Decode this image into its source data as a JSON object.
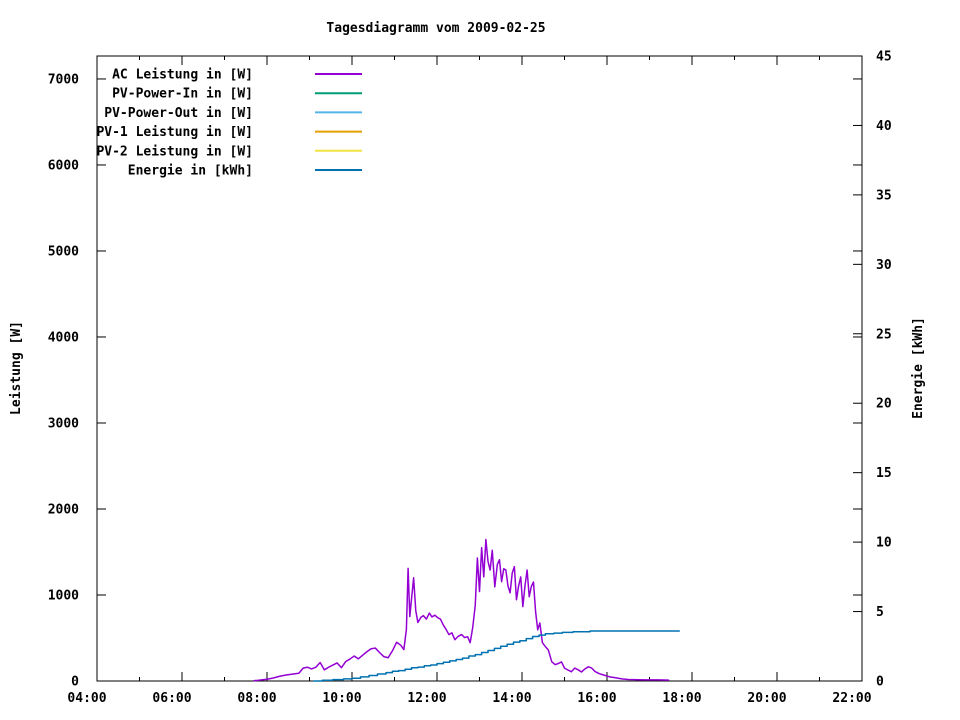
{
  "chart_data": {
    "type": "line",
    "title": "Tagesdiagramm vom 2009-02-25",
    "grid": false,
    "legend_position": "top-left-inside",
    "x_axis": {
      "kind": "time",
      "range_hours": [
        4,
        22
      ],
      "major_tick_labels": [
        "04:00",
        "06:00",
        "08:00",
        "10:00",
        "12:00",
        "14:00",
        "16:00",
        "18:00",
        "20:00",
        "22:00"
      ],
      "major_tick_hours": [
        4,
        6,
        8,
        10,
        12,
        14,
        16,
        18,
        20,
        22
      ],
      "minor_tick_step_hours": 1
    },
    "y_left": {
      "label": "Leistung [W]",
      "tick_labels": [
        "0",
        "1000",
        "2000",
        "3000",
        "4000",
        "5000",
        "6000",
        "7000"
      ],
      "tick_values": [
        0,
        1000,
        2000,
        3000,
        4000,
        5000,
        6000,
        7000
      ],
      "scale_max_at_top": 7267
    },
    "y_right": {
      "label": "Energie [kWh]",
      "tick_labels": [
        "0",
        "5",
        "10",
        "15",
        "20",
        "25",
        "30",
        "35",
        "40",
        "45"
      ],
      "tick_values": [
        0,
        5,
        10,
        15,
        20,
        25,
        30,
        35,
        40,
        45
      ],
      "range": [
        0,
        45
      ]
    },
    "series": [
      {
        "name": "AC Leistung in [W]",
        "color": "#9400d3",
        "axis": "left",
        "step": false,
        "points": [
          [
            7.7,
            5
          ],
          [
            7.78,
            8
          ],
          [
            7.9,
            15
          ],
          [
            8.0,
            20
          ],
          [
            8.15,
            35
          ],
          [
            8.3,
            55
          ],
          [
            8.45,
            70
          ],
          [
            8.6,
            80
          ],
          [
            8.75,
            90
          ],
          [
            8.85,
            150
          ],
          [
            8.95,
            160
          ],
          [
            9.05,
            140
          ],
          [
            9.15,
            160
          ],
          [
            9.25,
            215
          ],
          [
            9.35,
            130
          ],
          [
            9.45,
            160
          ],
          [
            9.55,
            185
          ],
          [
            9.65,
            210
          ],
          [
            9.75,
            155
          ],
          [
            9.85,
            225
          ],
          [
            9.95,
            255
          ],
          [
            10.05,
            290
          ],
          [
            10.15,
            258
          ],
          [
            10.25,
            300
          ],
          [
            10.35,
            340
          ],
          [
            10.45,
            375
          ],
          [
            10.55,
            383
          ],
          [
            10.65,
            330
          ],
          [
            10.75,
            283
          ],
          [
            10.85,
            270
          ],
          [
            10.95,
            350
          ],
          [
            11.05,
            450
          ],
          [
            11.15,
            415
          ],
          [
            11.22,
            365
          ],
          [
            11.28,
            600
          ],
          [
            11.32,
            1310
          ],
          [
            11.36,
            750
          ],
          [
            11.4,
            950
          ],
          [
            11.45,
            1200
          ],
          [
            11.5,
            820
          ],
          [
            11.55,
            680
          ],
          [
            11.62,
            740
          ],
          [
            11.68,
            760
          ],
          [
            11.75,
            720
          ],
          [
            11.82,
            790
          ],
          [
            11.88,
            745
          ],
          [
            11.95,
            765
          ],
          [
            12.02,
            735
          ],
          [
            12.08,
            720
          ],
          [
            12.15,
            650
          ],
          [
            12.22,
            595
          ],
          [
            12.28,
            540
          ],
          [
            12.35,
            560
          ],
          [
            12.42,
            480
          ],
          [
            12.5,
            520
          ],
          [
            12.58,
            540
          ],
          [
            12.65,
            505
          ],
          [
            12.72,
            515
          ],
          [
            12.78,
            445
          ],
          [
            12.84,
            620
          ],
          [
            12.9,
            880
          ],
          [
            12.95,
            1430
          ],
          [
            13.0,
            1040
          ],
          [
            13.05,
            1550
          ],
          [
            13.1,
            1210
          ],
          [
            13.15,
            1645
          ],
          [
            13.2,
            1390
          ],
          [
            13.25,
            1290
          ],
          [
            13.3,
            1520
          ],
          [
            13.36,
            1095
          ],
          [
            13.42,
            1355
          ],
          [
            13.47,
            1410
          ],
          [
            13.52,
            1155
          ],
          [
            13.57,
            1305
          ],
          [
            13.62,
            1290
          ],
          [
            13.67,
            1105
          ],
          [
            13.72,
            1025
          ],
          [
            13.77,
            1255
          ],
          [
            13.82,
            1330
          ],
          [
            13.87,
            945
          ],
          [
            13.92,
            1105
          ],
          [
            13.97,
            1210
          ],
          [
            14.02,
            865
          ],
          [
            14.07,
            1105
          ],
          [
            14.12,
            1290
          ],
          [
            14.17,
            980
          ],
          [
            14.22,
            1100
          ],
          [
            14.27,
            1150
          ],
          [
            14.32,
            805
          ],
          [
            14.37,
            595
          ],
          [
            14.42,
            675
          ],
          [
            14.48,
            445
          ],
          [
            14.55,
            400
          ],
          [
            14.62,
            360
          ],
          [
            14.7,
            225
          ],
          [
            14.78,
            190
          ],
          [
            14.86,
            205
          ],
          [
            14.93,
            222
          ],
          [
            15.0,
            150
          ],
          [
            15.08,
            128
          ],
          [
            15.16,
            108
          ],
          [
            15.24,
            150
          ],
          [
            15.32,
            130
          ],
          [
            15.4,
            105
          ],
          [
            15.48,
            140
          ],
          [
            15.56,
            165
          ],
          [
            15.64,
            150
          ],
          [
            15.72,
            110
          ],
          [
            15.82,
            85
          ],
          [
            15.92,
            70
          ],
          [
            16.05,
            50
          ],
          [
            16.2,
            38
          ],
          [
            16.35,
            25
          ],
          [
            16.5,
            18
          ],
          [
            16.7,
            15
          ],
          [
            16.95,
            13
          ],
          [
            17.2,
            13
          ],
          [
            17.45,
            10
          ]
        ]
      },
      {
        "name": "PV-Power-In in [W]",
        "color": "#009e73",
        "axis": "left",
        "step": false,
        "points": []
      },
      {
        "name": "PV-Power-Out in [W]",
        "color": "#56b4e9",
        "axis": "left",
        "step": false,
        "points": []
      },
      {
        "name": "PV-1 Leistung in [W]",
        "color": "#e69f00",
        "axis": "left",
        "step": false,
        "points": []
      },
      {
        "name": "PV-2 Leistung in [W]",
        "color": "#f0e442",
        "axis": "left",
        "step": false,
        "points": []
      },
      {
        "name": "Energie in [kWh]",
        "color": "#0072b2",
        "axis": "right",
        "step": true,
        "points": [
          [
            9.1,
            0
          ],
          [
            9.3,
            0.05
          ],
          [
            9.55,
            0.1
          ],
          [
            9.8,
            0.15
          ],
          [
            10.0,
            0.2
          ],
          [
            10.2,
            0.3
          ],
          [
            10.4,
            0.4
          ],
          [
            10.6,
            0.5
          ],
          [
            10.8,
            0.6
          ],
          [
            10.95,
            0.7
          ],
          [
            11.1,
            0.75
          ],
          [
            11.25,
            0.85
          ],
          [
            11.4,
            0.95
          ],
          [
            11.55,
            1.0
          ],
          [
            11.7,
            1.1
          ],
          [
            11.85,
            1.15
          ],
          [
            12.0,
            1.25
          ],
          [
            12.15,
            1.35
          ],
          [
            12.3,
            1.45
          ],
          [
            12.45,
            1.55
          ],
          [
            12.6,
            1.65
          ],
          [
            12.75,
            1.8
          ],
          [
            12.9,
            1.9
          ],
          [
            13.05,
            2.05
          ],
          [
            13.2,
            2.2
          ],
          [
            13.35,
            2.35
          ],
          [
            13.5,
            2.5
          ],
          [
            13.65,
            2.65
          ],
          [
            13.8,
            2.8
          ],
          [
            13.95,
            2.9
          ],
          [
            14.1,
            3.05
          ],
          [
            14.25,
            3.2
          ],
          [
            14.4,
            3.3
          ],
          [
            14.55,
            3.4
          ],
          [
            14.75,
            3.45
          ],
          [
            14.95,
            3.5
          ],
          [
            15.2,
            3.55
          ],
          [
            15.6,
            3.6
          ],
          [
            17.7,
            3.6
          ]
        ]
      }
    ]
  }
}
